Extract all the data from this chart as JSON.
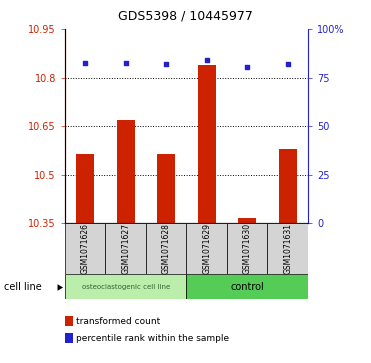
{
  "title": "GDS5398 / 10445977",
  "samples": [
    "GSM1071626",
    "GSM1071627",
    "GSM1071628",
    "GSM1071629",
    "GSM1071630",
    "GSM1071631"
  ],
  "bar_values": [
    10.565,
    10.67,
    10.565,
    10.84,
    10.365,
    10.58
  ],
  "bar_bottom": 10.35,
  "percentile_values": [
    82.5,
    82.5,
    82.0,
    84.0,
    80.5,
    82.0
  ],
  "ylim_left": [
    10.35,
    10.95
  ],
  "ylim_right": [
    0,
    100
  ],
  "yticks_left": [
    10.35,
    10.5,
    10.65,
    10.8,
    10.95
  ],
  "yticks_right": [
    0,
    25,
    50,
    75,
    100
  ],
  "ytick_labels_right": [
    "0",
    "25",
    "50",
    "75",
    "100%"
  ],
  "bar_color": "#cc2200",
  "dot_color": "#2222cc",
  "group1_label": "osteoclastogenic cell line",
  "group2_label": "control",
  "group1_indices": [
    0,
    1,
    2
  ],
  "group2_indices": [
    3,
    4,
    5
  ],
  "group1_color": "#bbeeaa",
  "group2_color": "#55cc55",
  "cell_line_label": "cell line",
  "legend_bar_label": "transformed count",
  "legend_dot_label": "percentile rank within the sample",
  "bar_width": 0.45,
  "grid_lines": [
    10.5,
    10.65,
    10.8
  ],
  "sample_box_color": "#d4d4d4",
  "title_fontsize": 9,
  "tick_fontsize": 7,
  "label_fontsize": 7
}
